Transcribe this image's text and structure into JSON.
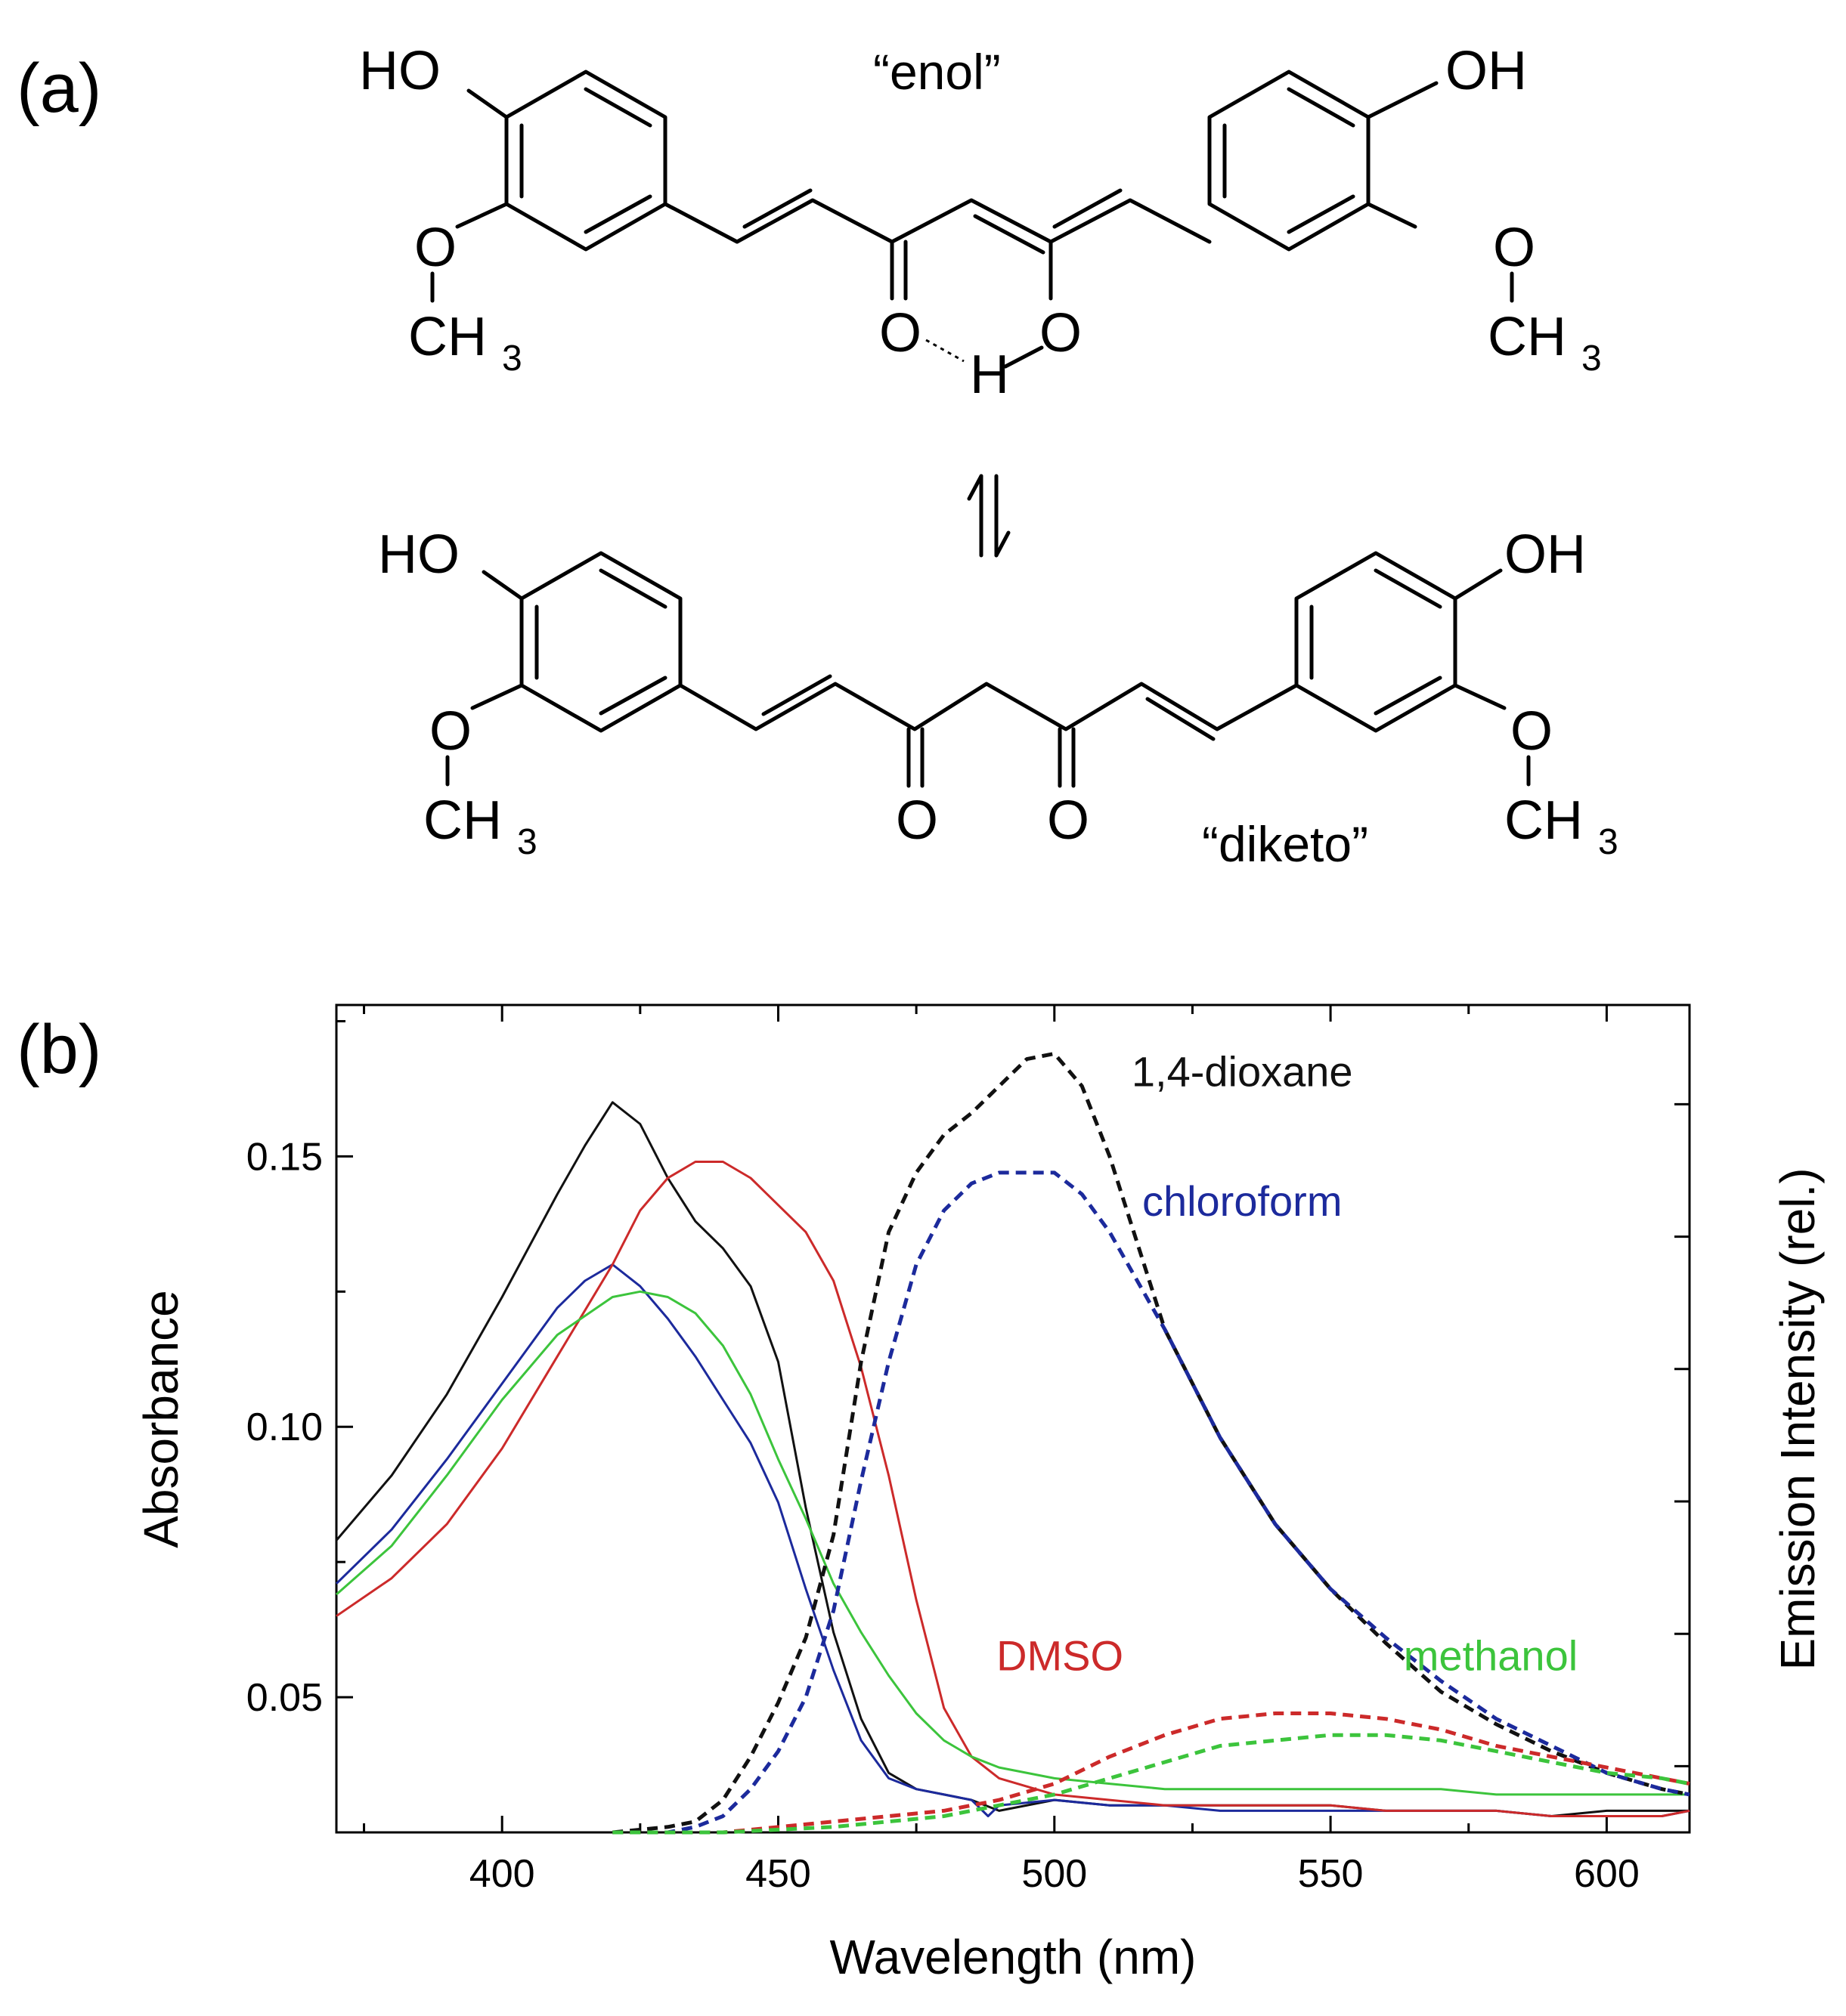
{
  "figure": {
    "panel_a": {
      "label": "(a)",
      "enol_tag": "“enol”",
      "diketo_tag": "“diketo”",
      "atoms": {
        "ho": "HO",
        "oh": "OH",
        "o": "O",
        "h": "H",
        "ch": "CH",
        "sub3": "3"
      }
    },
    "panel_b": {
      "label": "(b)"
    }
  },
  "chart_data": {
    "type": "line",
    "xlabel": "Wavelength (nm)",
    "ylabel": "Absorbance",
    "y2label": "Emission Intensity (rel.)",
    "xlim": [
      370,
      615
    ],
    "ylim": [
      0.025,
      0.178
    ],
    "xticks": [
      400,
      450,
      500,
      550,
      600
    ],
    "yticks": [
      0.05,
      0.1,
      0.15
    ],
    "ytick_labels": [
      "0.05",
      "0.10",
      "0.15"
    ],
    "grid": false,
    "series": [
      {
        "name": "1,4-dioxane",
        "kind": "absorbance",
        "style": "solid",
        "color": "#111111",
        "x": [
          370,
          380,
          390,
          400,
          410,
          415,
          420,
          425,
          430,
          435,
          440,
          445,
          450,
          455,
          460,
          465,
          470,
          475,
          480,
          485,
          490,
          500,
          510,
          520,
          530,
          540,
          550,
          560,
          570,
          580,
          590,
          600,
          610,
          615
        ],
        "y": [
          0.079,
          0.091,
          0.106,
          0.124,
          0.143,
          0.152,
          0.16,
          0.156,
          0.146,
          0.138,
          0.133,
          0.126,
          0.112,
          0.085,
          0.062,
          0.046,
          0.036,
          0.033,
          0.032,
          0.031,
          0.029,
          0.031,
          0.03,
          0.03,
          0.03,
          0.03,
          0.03,
          0.029,
          0.029,
          0.029,
          0.028,
          0.029,
          0.029,
          0.029
        ]
      },
      {
        "name": "chloroform",
        "kind": "absorbance",
        "style": "solid",
        "color": "#1c2a9c",
        "x": [
          370,
          380,
          390,
          400,
          410,
          415,
          420,
          425,
          430,
          435,
          440,
          445,
          450,
          455,
          460,
          465,
          470,
          475,
          480,
          485,
          488,
          490,
          500,
          510,
          520,
          530,
          540,
          550,
          560,
          570,
          580,
          590,
          600,
          610,
          615
        ],
        "y": [
          0.071,
          0.081,
          0.094,
          0.108,
          0.122,
          0.127,
          0.13,
          0.126,
          0.12,
          0.113,
          0.105,
          0.097,
          0.086,
          0.07,
          0.055,
          0.042,
          0.035,
          0.033,
          0.032,
          0.031,
          0.028,
          0.03,
          0.031,
          0.03,
          0.03,
          0.029,
          0.029,
          0.029,
          0.029,
          0.029,
          0.029,
          0.028,
          0.028,
          0.028,
          0.029
        ]
      },
      {
        "name": "DMSO",
        "kind": "absorbance",
        "style": "solid",
        "color": "#cc2a2a",
        "x": [
          370,
          380,
          390,
          400,
          410,
          420,
          425,
          430,
          435,
          440,
          445,
          450,
          455,
          460,
          465,
          470,
          475,
          480,
          485,
          490,
          500,
          510,
          520,
          530,
          540,
          550,
          560,
          570,
          580,
          590,
          600,
          610,
          615
        ],
        "y": [
          0.065,
          0.072,
          0.082,
          0.096,
          0.113,
          0.13,
          0.14,
          0.146,
          0.149,
          0.149,
          0.146,
          0.141,
          0.136,
          0.127,
          0.111,
          0.091,
          0.068,
          0.048,
          0.039,
          0.035,
          0.032,
          0.031,
          0.03,
          0.03,
          0.03,
          0.03,
          0.029,
          0.029,
          0.029,
          0.028,
          0.028,
          0.028,
          0.029
        ]
      },
      {
        "name": "methanol",
        "kind": "absorbance",
        "style": "solid",
        "color": "#3cc43c",
        "x": [
          370,
          380,
          390,
          400,
          410,
          420,
          425,
          430,
          435,
          440,
          445,
          450,
          455,
          460,
          465,
          470,
          475,
          480,
          485,
          490,
          500,
          510,
          520,
          530,
          540,
          550,
          560,
          570,
          580,
          590,
          600,
          610,
          615
        ],
        "y": [
          0.069,
          0.078,
          0.091,
          0.105,
          0.117,
          0.124,
          0.125,
          0.124,
          0.121,
          0.115,
          0.106,
          0.094,
          0.083,
          0.071,
          0.062,
          0.054,
          0.047,
          0.042,
          0.039,
          0.037,
          0.035,
          0.034,
          0.033,
          0.033,
          0.033,
          0.033,
          0.033,
          0.033,
          0.032,
          0.032,
          0.032,
          0.032,
          0.032
        ]
      },
      {
        "name": "1,4-dioxane",
        "kind": "emission",
        "style": "dashed",
        "color": "#111111",
        "x": [
          420,
          430,
          435,
          440,
          445,
          450,
          455,
          460,
          465,
          470,
          475,
          480,
          485,
          490,
          495,
          500,
          505,
          510,
          515,
          520,
          530,
          540,
          550,
          560,
          570,
          580,
          590,
          600,
          610,
          615
        ],
        "y": [
          0.025,
          0.026,
          0.027,
          0.031,
          0.039,
          0.049,
          0.061,
          0.08,
          0.112,
          0.136,
          0.147,
          0.154,
          0.158,
          0.163,
          0.168,
          0.169,
          0.163,
          0.15,
          0.134,
          0.118,
          0.098,
          0.082,
          0.07,
          0.06,
          0.051,
          0.045,
          0.04,
          0.036,
          0.033,
          0.032
        ]
      },
      {
        "name": "chloroform",
        "kind": "emission",
        "style": "dashed",
        "color": "#1c2a9c",
        "x": [
          420,
          430,
          435,
          440,
          445,
          450,
          455,
          460,
          465,
          470,
          475,
          480,
          485,
          490,
          495,
          500,
          505,
          510,
          515,
          520,
          530,
          540,
          550,
          560,
          570,
          580,
          590,
          600,
          610,
          615
        ],
        "y": [
          0.025,
          0.025,
          0.026,
          0.028,
          0.033,
          0.04,
          0.05,
          0.066,
          0.09,
          0.112,
          0.13,
          0.14,
          0.145,
          0.147,
          0.147,
          0.147,
          0.143,
          0.136,
          0.127,
          0.118,
          0.098,
          0.082,
          0.07,
          0.061,
          0.053,
          0.046,
          0.041,
          0.036,
          0.033,
          0.032
        ]
      },
      {
        "name": "DMSO",
        "kind": "emission",
        "style": "dashed",
        "color": "#cc2a2a",
        "x": [
          420,
          440,
          460,
          480,
          490,
          500,
          510,
          520,
          530,
          540,
          550,
          560,
          570,
          580,
          590,
          600,
          610,
          615
        ],
        "y": [
          0.025,
          0.025,
          0.027,
          0.029,
          0.031,
          0.034,
          0.039,
          0.043,
          0.046,
          0.047,
          0.047,
          0.046,
          0.044,
          0.041,
          0.039,
          0.037,
          0.035,
          0.034
        ]
      },
      {
        "name": "methanol",
        "kind": "emission",
        "style": "dashed",
        "color": "#3cc43c",
        "x": [
          420,
          440,
          460,
          480,
          490,
          500,
          510,
          520,
          530,
          540,
          550,
          560,
          570,
          580,
          590,
          600,
          610,
          615
        ],
        "y": [
          0.025,
          0.025,
          0.026,
          0.028,
          0.03,
          0.032,
          0.035,
          0.038,
          0.041,
          0.042,
          0.043,
          0.043,
          0.042,
          0.04,
          0.038,
          0.036,
          0.035,
          0.034
        ]
      }
    ],
    "annotations": [
      {
        "text": "1,4-dioxane",
        "color": "#111111",
        "x": 534,
        "y": 0.163
      },
      {
        "text": "chloroform",
        "color": "#1c2a9c",
        "x": 534,
        "y": 0.139
      },
      {
        "text": "DMSO",
        "color": "#cc2a2a",
        "x": 501,
        "y": 0.055
      },
      {
        "text": "methanol",
        "color": "#3cc43c",
        "x": 579,
        "y": 0.055
      }
    ]
  }
}
